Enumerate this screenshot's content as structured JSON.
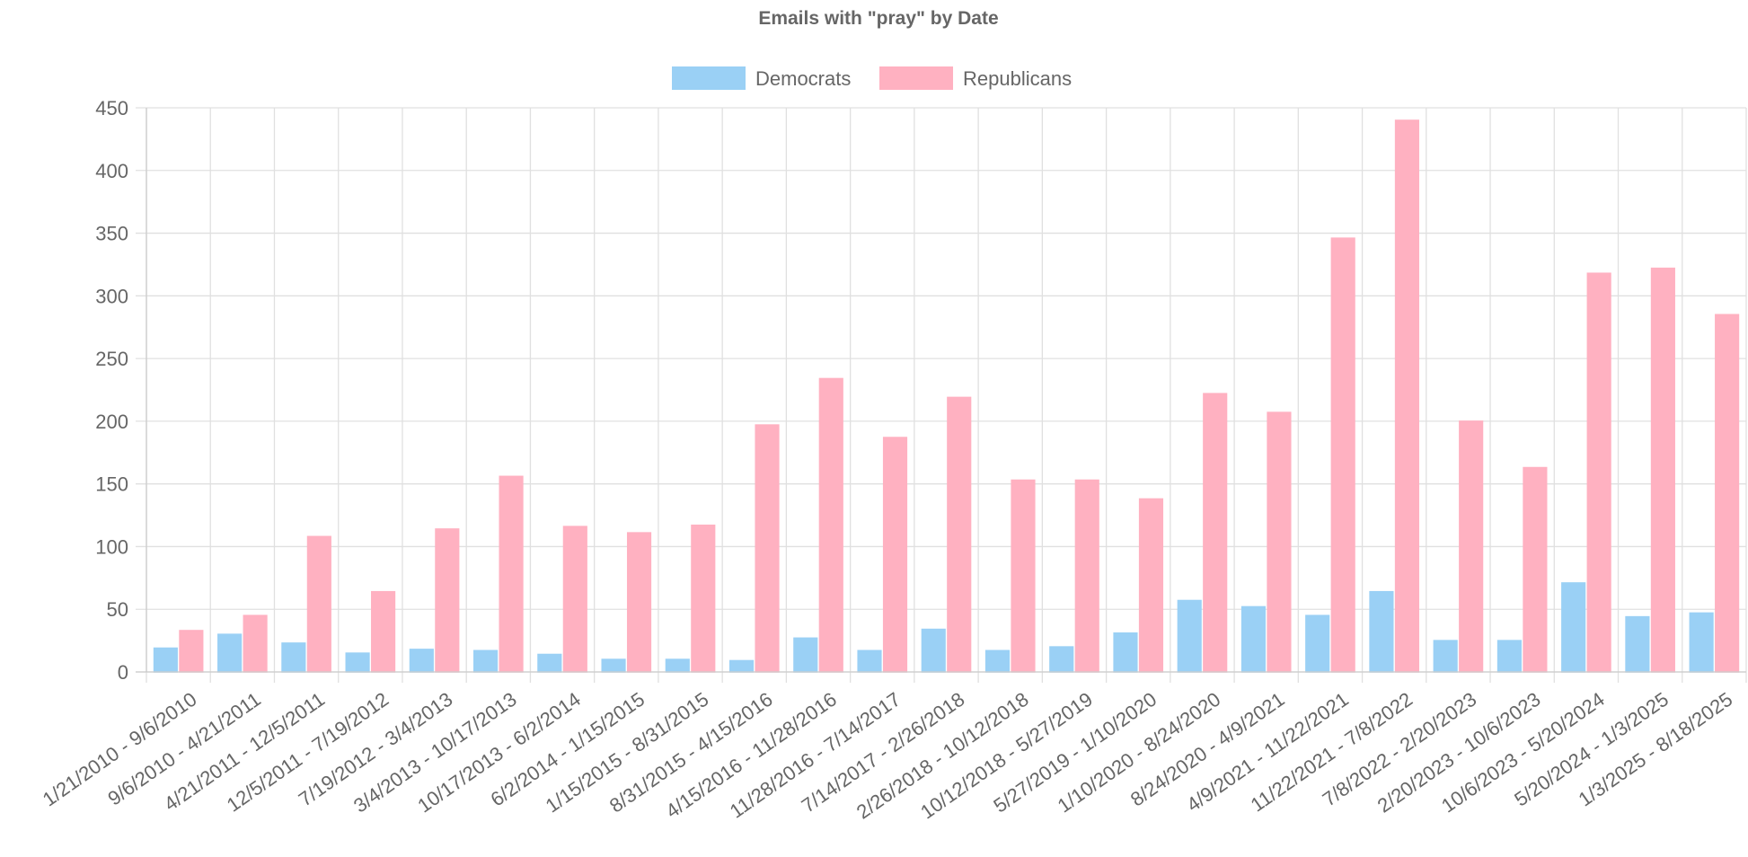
{
  "chart_data": {
    "type": "bar",
    "title": "Emails with \"pray\" by Date",
    "xlabel": "",
    "ylabel": "",
    "ylim": [
      0,
      450
    ],
    "yticks": [
      0,
      50,
      100,
      150,
      200,
      250,
      300,
      350,
      400,
      450
    ],
    "grid": true,
    "legend_position": "top-center",
    "categories": [
      "1/21/2010 - 9/6/2010",
      "9/6/2010 - 4/21/2011",
      "4/21/2011 - 12/5/2011",
      "12/5/2011 - 7/19/2012",
      "7/19/2012 - 3/4/2013",
      "3/4/2013 - 10/17/2013",
      "10/17/2013 - 6/2/2014",
      "6/2/2014 - 1/15/2015",
      "1/15/2015 - 8/31/2015",
      "8/31/2015 - 4/15/2016",
      "4/15/2016 - 11/28/2016",
      "11/28/2016 - 7/14/2017",
      "7/14/2017 - 2/26/2018",
      "2/26/2018 - 10/12/2018",
      "10/12/2018 - 5/27/2019",
      "5/27/2019 - 1/10/2020",
      "1/10/2020 - 8/24/2020",
      "8/24/2020 - 4/9/2021",
      "4/9/2021 - 11/22/2021",
      "11/22/2021 - 7/8/2022",
      "7/8/2022 - 2/20/2023",
      "2/20/2023 - 10/6/2023",
      "10/6/2023 - 5/20/2024",
      "5/20/2024 - 1/3/2025",
      "1/3/2025 - 8/18/2025"
    ],
    "series": [
      {
        "name": "Democrats",
        "color": "#9ad0f5",
        "values": [
          19,
          30,
          23,
          15,
          18,
          17,
          14,
          10,
          10,
          9,
          27,
          17,
          34,
          17,
          20,
          31,
          57,
          52,
          45,
          64,
          25,
          25,
          71,
          44,
          47
        ]
      },
      {
        "name": "Republicans",
        "color": "#ffb1c1",
        "values": [
          33,
          45,
          108,
          64,
          114,
          156,
          116,
          111,
          117,
          197,
          234,
          187,
          219,
          153,
          153,
          138,
          222,
          207,
          346,
          440,
          200,
          163,
          318,
          322,
          285
        ]
      }
    ]
  }
}
